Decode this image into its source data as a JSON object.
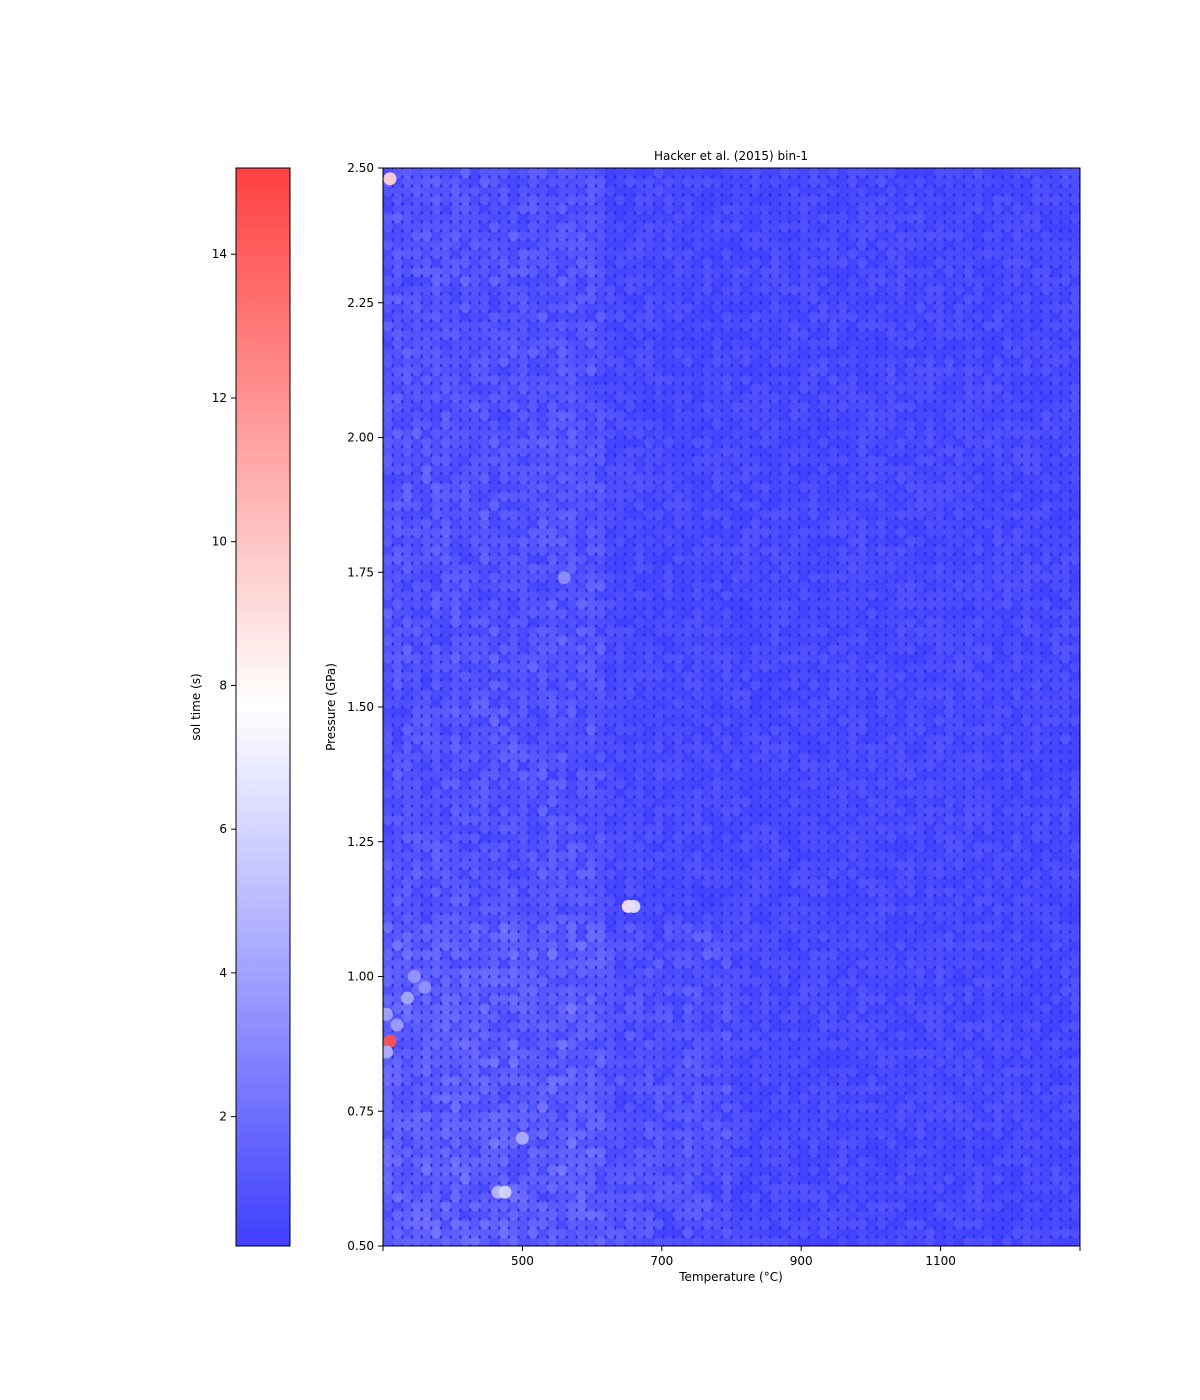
{
  "chart_data": {
    "type": "scatter",
    "title": "Hacker et al. (2015) bin-1",
    "xlabel": "Temperature (°C)",
    "ylabel": "Pressure (GPa)",
    "xlim": [
      300,
      1300
    ],
    "ylim": [
      0.5,
      2.5
    ],
    "xticks": [
      "500",
      "700",
      "900",
      "1100"
    ],
    "xtick_values": [
      500,
      700,
      900,
      1100
    ],
    "yticks": [
      "0.50",
      "0.75",
      "1.00",
      "1.25",
      "1.50",
      "1.75",
      "2.00",
      "2.25",
      "2.50"
    ],
    "ytick_values": [
      0.5,
      0.75,
      1.0,
      1.25,
      1.5,
      1.75,
      2.0,
      2.25,
      2.5
    ],
    "grid": false,
    "colormap": "bwr",
    "background_color": "#2626ff",
    "colorbar": {
      "label": "sol time (s)",
      "range": [
        0.2,
        15.2
      ],
      "ticks": [
        "2",
        "4",
        "6",
        "8",
        "10",
        "12",
        "14"
      ],
      "tick_values": [
        2,
        4,
        6,
        8,
        10,
        12,
        14
      ],
      "placement": "left",
      "min_color": "#4040ff",
      "mid_color": "#ffffff",
      "max_color": "#ff4040"
    },
    "highlight_points": [
      {
        "x": 310,
        "y": 0.88,
        "value": 14.5
      },
      {
        "x": 310,
        "y": 2.48,
        "value": 9.5
      },
      {
        "x": 652,
        "y": 1.13,
        "value": 9.0
      },
      {
        "x": 660,
        "y": 1.13,
        "value": 6.5
      },
      {
        "x": 465,
        "y": 0.6,
        "value": 4.8
      },
      {
        "x": 475,
        "y": 0.6,
        "value": 6.0
      },
      {
        "x": 500,
        "y": 0.7,
        "value": 4.5
      },
      {
        "x": 335,
        "y": 0.96,
        "value": 4.2
      },
      {
        "x": 305,
        "y": 0.86,
        "value": 4.5
      },
      {
        "x": 305,
        "y": 0.93,
        "value": 4.0
      },
      {
        "x": 320,
        "y": 0.91,
        "value": 3.8
      },
      {
        "x": 560,
        "y": 1.74,
        "value": 3.2
      },
      {
        "x": 345,
        "y": 1.0,
        "value": 3.5
      },
      {
        "x": 360,
        "y": 0.98,
        "value": 3.4
      }
    ]
  }
}
